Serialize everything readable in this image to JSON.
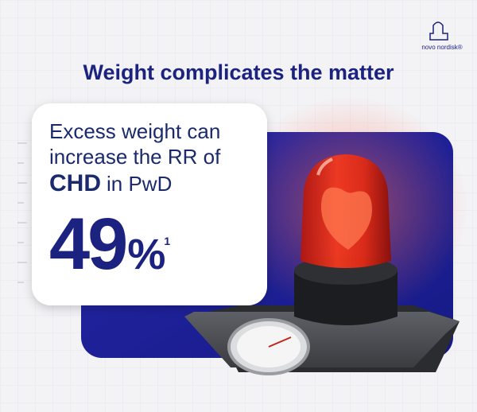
{
  "header": {
    "logo": "novo nordisk®",
    "title": "Weight complicates the matter"
  },
  "card": {
    "line1": "Excess weight can",
    "line2": "increase the RR of",
    "highlight": "CHD",
    "line3_rest": "in PwD",
    "stat": "49",
    "unit": "%",
    "reference": "1"
  }
}
